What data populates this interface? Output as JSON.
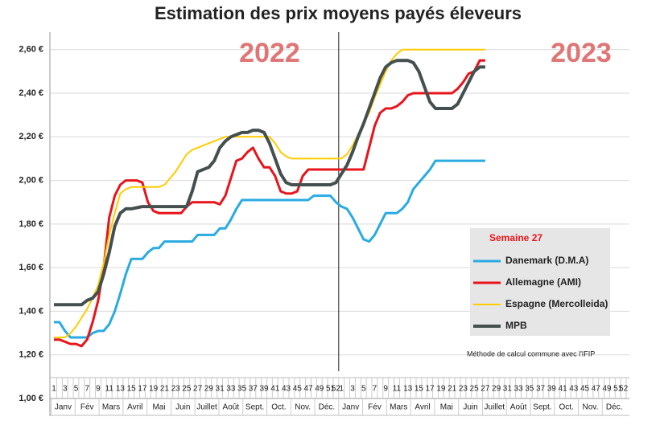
{
  "chart_data": {
    "type": "line",
    "title": "Estimation des prix moyens payés éleveurs",
    "annotations": [
      "2022",
      "2023"
    ],
    "legend_title": "Semaine 27",
    "note": "Méthode de calcul commune avec l'IFIP",
    "categories": [
      1,
      null,
      3,
      null,
      5,
      null,
      7,
      null,
      9,
      null,
      11,
      null,
      13,
      null,
      15,
      null,
      17,
      null,
      19,
      null,
      21,
      null,
      23,
      null,
      25,
      null,
      27,
      null,
      29,
      null,
      31,
      null,
      33,
      null,
      35,
      null,
      37,
      null,
      39,
      null,
      41,
      null,
      43,
      null,
      45,
      null,
      47,
      null,
      49,
      null,
      51,
      52,
      1,
      null,
      3,
      null,
      5,
      null,
      7,
      null,
      9,
      null,
      11,
      null,
      13,
      null,
      15,
      null,
      17,
      null,
      19,
      null,
      21,
      null,
      23,
      null,
      25,
      null,
      27,
      null,
      29,
      null,
      31,
      null,
      33,
      null,
      35,
      null,
      37,
      null,
      39,
      null,
      41,
      null,
      43,
      null,
      45,
      null,
      47,
      null,
      49,
      null,
      51,
      52
    ],
    "months": [
      "Janv",
      "Fév",
      "Mars",
      "Avril",
      "Mai",
      "Juin",
      "Juillet",
      "Août",
      "Sept.",
      "Oct.",
      "Nov.",
      "Déc.",
      "Janv",
      "Fév",
      "Mars",
      "Avril",
      "Mai",
      "Juin",
      "Juillet",
      "Août",
      "Sept.",
      "Oct.",
      "Nov.",
      "Déc."
    ],
    "ylim": [
      1.0,
      2.68
    ],
    "yticks": [
      {
        "value": 1.0,
        "label": "1,00 €"
      },
      {
        "value": 1.2,
        "label": "1,20 €"
      },
      {
        "value": 1.4,
        "label": "1,40 €"
      },
      {
        "value": 1.6,
        "label": "1,60 €"
      },
      {
        "value": 1.8,
        "label": "1,80 €"
      },
      {
        "value": 2.0,
        "label": "2,00 €"
      },
      {
        "value": 2.2,
        "label": "2,20 €"
      },
      {
        "value": 2.4,
        "label": "2,40 €"
      },
      {
        "value": 2.6,
        "label": "2,60 €"
      }
    ],
    "grid": true,
    "series": [
      {
        "name": "Danemark (D.M.A)",
        "color": "#29abe2",
        "width": 3,
        "values": [
          1.35,
          1.35,
          1.31,
          1.28,
          1.28,
          1.28,
          1.28,
          1.3,
          1.31,
          1.31,
          1.34,
          1.4,
          1.48,
          1.57,
          1.64,
          1.64,
          1.64,
          1.67,
          1.69,
          1.69,
          1.72,
          1.72,
          1.72,
          1.72,
          1.72,
          1.72,
          1.75,
          1.75,
          1.75,
          1.75,
          1.78,
          1.78,
          1.82,
          1.87,
          1.91,
          1.91,
          1.91,
          1.91,
          1.91,
          1.91,
          1.91,
          1.91,
          1.91,
          1.91,
          1.91,
          1.91,
          1.91,
          1.93,
          1.93,
          1.93,
          1.93,
          1.9,
          1.88,
          1.87,
          1.83,
          1.78,
          1.73,
          1.72,
          1.75,
          1.8,
          1.85,
          1.85,
          1.85,
          1.87,
          1.9,
          1.96,
          1.99,
          2.02,
          2.05,
          2.09,
          2.09,
          2.09,
          2.09,
          2.09,
          2.09,
          2.09,
          2.09,
          2.09,
          2.09,
          null,
          null,
          null,
          null,
          null,
          null,
          null,
          null,
          null,
          null,
          null,
          null,
          null,
          null,
          null,
          null,
          null,
          null,
          null,
          null,
          null,
          null,
          null,
          null,
          null
        ]
      },
      {
        "name": "Allemagne (AMI)",
        "color": "#e8141b",
        "width": 3,
        "values": [
          1.27,
          1.27,
          1.26,
          1.25,
          1.25,
          1.24,
          1.27,
          1.35,
          1.45,
          1.6,
          1.83,
          1.93,
          1.98,
          2.0,
          2.0,
          2.0,
          1.99,
          1.9,
          1.86,
          1.85,
          1.85,
          1.85,
          1.85,
          1.85,
          1.88,
          1.9,
          1.9,
          1.9,
          1.9,
          1.9,
          1.89,
          1.93,
          2.01,
          2.09,
          2.1,
          2.13,
          2.15,
          2.1,
          2.06,
          2.06,
          2.02,
          1.95,
          1.94,
          1.94,
          1.95,
          2.02,
          2.05,
          2.05,
          2.05,
          2.05,
          2.05,
          2.05,
          2.05,
          2.05,
          2.05,
          2.05,
          2.05,
          2.15,
          2.25,
          2.31,
          2.33,
          2.33,
          2.34,
          2.36,
          2.39,
          2.4,
          2.4,
          2.4,
          2.4,
          2.4,
          2.4,
          2.4,
          2.4,
          2.42,
          2.45,
          2.49,
          2.5,
          2.55,
          2.55,
          null,
          null,
          null,
          null,
          null,
          null,
          null,
          null,
          null,
          null,
          null,
          null,
          null,
          null,
          null,
          null,
          null,
          null,
          null,
          null,
          null,
          null,
          null,
          null,
          null
        ]
      },
      {
        "name": "Espagne (Mercolleida)",
        "color": "#ffcc00",
        "width": 2,
        "values": [
          1.28,
          1.28,
          1.28,
          1.3,
          1.33,
          1.37,
          1.41,
          1.46,
          1.52,
          1.62,
          1.75,
          1.85,
          1.94,
          1.96,
          1.97,
          1.97,
          1.97,
          1.97,
          1.97,
          1.97,
          1.98,
          2.01,
          2.04,
          2.08,
          2.12,
          2.14,
          2.15,
          2.16,
          2.17,
          2.18,
          2.19,
          2.2,
          2.2,
          2.2,
          2.2,
          2.2,
          2.2,
          2.2,
          2.2,
          2.2,
          2.17,
          2.13,
          2.11,
          2.1,
          2.1,
          2.1,
          2.1,
          2.1,
          2.1,
          2.1,
          2.1,
          2.1,
          2.1,
          2.12,
          2.16,
          2.21,
          2.26,
          2.31,
          2.38,
          2.44,
          2.5,
          2.55,
          2.58,
          2.6,
          2.6,
          2.6,
          2.6,
          2.6,
          2.6,
          2.6,
          2.6,
          2.6,
          2.6,
          2.6,
          2.6,
          2.6,
          2.6,
          2.6,
          2.6,
          null,
          null,
          null,
          null,
          null,
          null,
          null,
          null,
          null,
          null,
          null,
          null,
          null,
          null,
          null,
          null,
          null,
          null,
          null,
          null,
          null,
          null,
          null,
          null,
          null
        ]
      },
      {
        "name": "MPB",
        "color": "#44504f",
        "width": 4,
        "values": [
          1.43,
          1.43,
          1.43,
          1.43,
          1.43,
          1.43,
          1.45,
          1.46,
          1.49,
          1.57,
          1.67,
          1.79,
          1.85,
          1.87,
          1.87,
          1.875,
          1.88,
          1.88,
          1.88,
          1.88,
          1.88,
          1.88,
          1.88,
          1.88,
          1.88,
          1.95,
          2.04,
          2.05,
          2.06,
          2.09,
          2.15,
          2.18,
          2.2,
          2.21,
          2.22,
          2.22,
          2.23,
          2.23,
          2.22,
          2.17,
          2.1,
          2.03,
          1.99,
          1.98,
          1.98,
          1.98,
          1.98,
          1.98,
          1.98,
          1.98,
          1.98,
          1.99,
          2.03,
          2.07,
          2.13,
          2.2,
          2.26,
          2.33,
          2.4,
          2.47,
          2.52,
          2.54,
          2.55,
          2.55,
          2.55,
          2.54,
          2.5,
          2.43,
          2.36,
          2.33,
          2.33,
          2.33,
          2.33,
          2.35,
          2.4,
          2.45,
          2.5,
          2.52,
          2.52,
          null,
          null,
          null,
          null,
          null,
          null,
          null,
          null,
          null,
          null,
          null,
          null,
          null,
          null,
          null,
          null,
          null,
          null,
          null,
          null,
          null,
          null,
          null,
          null,
          null
        ]
      }
    ]
  }
}
